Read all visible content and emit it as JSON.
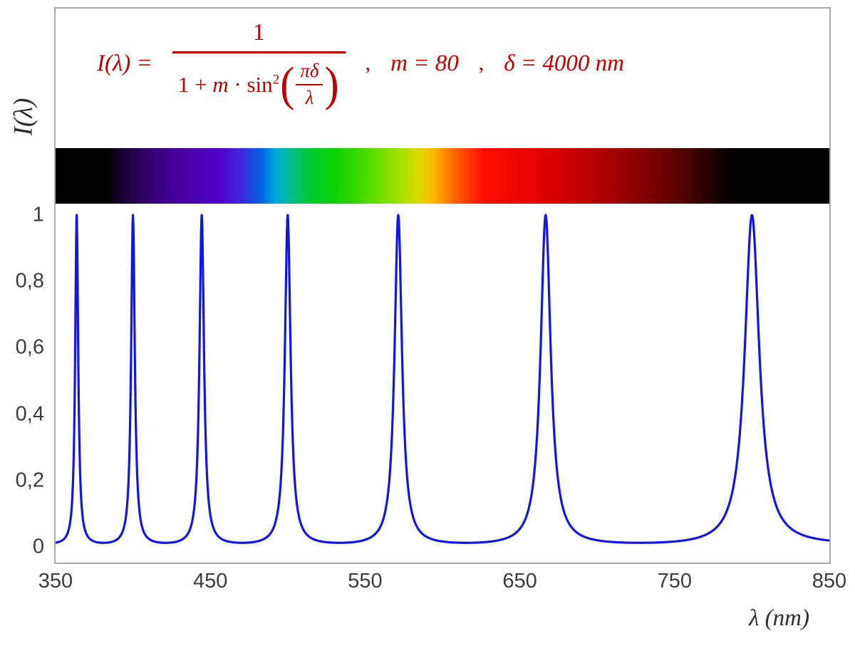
{
  "colors": {
    "formula_red": "#c00000",
    "axis_text": "#3d3d3d",
    "frame_border": "#a9a9a9",
    "curve_blue": "#1414e6",
    "background": "#ffffff"
  },
  "formula": {
    "lhs": "I(λ) =",
    "numerator": "1",
    "den_a": "1 + ",
    "den_b": "m",
    "den_c": " · sin",
    "den_exp": "2",
    "paren_open": "(",
    "paren_close": ")",
    "inner_num": "πδ",
    "inner_den": "λ",
    "sep": ",",
    "param_m": "m = 80",
    "param_delta": "δ = 4000 nm"
  },
  "axes": {
    "y_label": "I(λ)",
    "x_label": "λ  (nm)"
  },
  "chart_data": {
    "type": "line",
    "title": "I(λ) = 1 / (1 + m·sin²(πδ/λ)) ,  m = 80 ,  δ = 4000 nm",
    "xlabel": "λ (nm)",
    "ylabel": "I(λ)",
    "xlim": [
      350,
      850
    ],
    "ylim": [
      0,
      1
    ],
    "grid": false,
    "legend": "none",
    "x_ticks": [
      "350",
      "450",
      "550",
      "650",
      "750",
      "850"
    ],
    "y_ticks": [
      "0",
      "0,2",
      "0,4",
      "0,6",
      "0,8",
      "1"
    ],
    "function": {
      "formula": "I(lambda) = 1 / (1 + m * sin^2(pi * delta / lambda))",
      "m": 80,
      "delta_nm": 4000,
      "sample_step_nm": 0.25
    },
    "peaks_nm": [
      363.636,
      400,
      444.444,
      500,
      571.429,
      666.667,
      800
    ],
    "peak_value": 1,
    "line_color": "#1414e6",
    "line_width": 3.2,
    "spectrum_bar": {
      "description": "visible-light spectrum strip aligned to the wavelength axis, black outside visible range",
      "range_nm": [
        350,
        850
      ],
      "stops": [
        {
          "nm": 350,
          "color": "#000000"
        },
        {
          "nm": 383,
          "color": "#000000"
        },
        {
          "nm": 395,
          "color": "#1c0038"
        },
        {
          "nm": 410,
          "color": "#32006e"
        },
        {
          "nm": 430,
          "color": "#4600a0"
        },
        {
          "nm": 455,
          "color": "#5000c8"
        },
        {
          "nm": 470,
          "color": "#3c28dc"
        },
        {
          "nm": 483,
          "color": "#0064e6"
        },
        {
          "nm": 492,
          "color": "#00a8dc"
        },
        {
          "nm": 502,
          "color": "#00be8c"
        },
        {
          "nm": 514,
          "color": "#00c832"
        },
        {
          "nm": 530,
          "color": "#0ad200"
        },
        {
          "nm": 552,
          "color": "#50dc00"
        },
        {
          "nm": 572,
          "color": "#a0e000"
        },
        {
          "nm": 584,
          "color": "#dcdc00"
        },
        {
          "nm": 595,
          "color": "#ffb400"
        },
        {
          "nm": 608,
          "color": "#ff6400"
        },
        {
          "nm": 626,
          "color": "#ff0f00"
        },
        {
          "nm": 660,
          "color": "#e60000"
        },
        {
          "nm": 700,
          "color": "#b40000"
        },
        {
          "nm": 732,
          "color": "#820000"
        },
        {
          "nm": 760,
          "color": "#460000"
        },
        {
          "nm": 778,
          "color": "#140000"
        },
        {
          "nm": 790,
          "color": "#000000"
        },
        {
          "nm": 850,
          "color": "#000000"
        }
      ]
    }
  }
}
